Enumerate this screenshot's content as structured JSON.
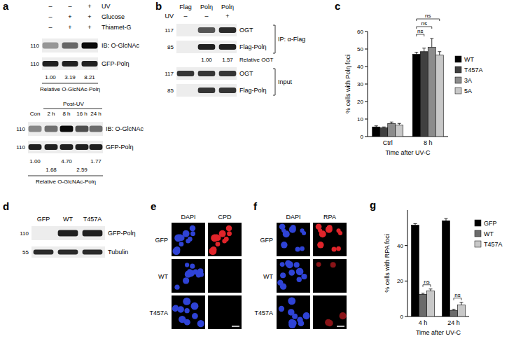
{
  "chart_data": [
    {
      "type": "bar",
      "panel_label": "c",
      "categories": [
        "Ctrl",
        "8 h"
      ],
      "series": [
        {
          "name": "WT",
          "color": "#000000",
          "values": [
            5.5,
            47
          ],
          "errors": [
            0.6,
            1.2
          ]
        },
        {
          "name": "T457A",
          "color": "#404040",
          "values": [
            5,
            48.5
          ],
          "errors": [
            0.5,
            2
          ]
        },
        {
          "name": "3A",
          "color": "#8c8c8c",
          "values": [
            7.5,
            51
          ],
          "errors": [
            0.8,
            5
          ]
        },
        {
          "name": "5A",
          "color": "#c8c8c8",
          "values": [
            6.5,
            46.5
          ],
          "errors": [
            1,
            2
          ]
        }
      ],
      "ylim": [
        0,
        60
      ],
      "yticks": [
        0,
        10,
        20,
        30,
        40,
        50,
        60
      ],
      "y_label": "% cells with Polη foci",
      "x_label": "Time after UV-C",
      "legend": "right",
      "annotations": [
        "ns",
        "ns",
        "ns"
      ]
    },
    {
      "type": "bar",
      "panel_label": "g",
      "categories": [
        "4 h",
        "24 h"
      ],
      "series": [
        {
          "name": "GFP",
          "color": "#000000",
          "values": [
            51.5,
            54
          ],
          "errors": [
            0.8,
            1.2
          ]
        },
        {
          "name": "WT",
          "color": "#6b6b6b",
          "values": [
            12.5,
            3.5
          ],
          "errors": [
            0.6,
            0.6
          ]
        },
        {
          "name": "T457A",
          "color": "#c8c8c8",
          "values": [
            14.5,
            6.5
          ],
          "errors": [
            1,
            1.5
          ]
        }
      ],
      "ylim": [
        0,
        60
      ],
      "yticks": [
        0,
        20,
        40
      ],
      "y_label": "% cells with RPA foci",
      "x_label": "Time after UV-C",
      "legend": "right",
      "annotations": [
        "ns",
        "ns"
      ]
    }
  ],
  "panels": {
    "a": {
      "label": "a",
      "top": {
        "conditions": [
          {
            "name": "UV",
            "signs": [
              "–",
              "–",
              "+"
            ]
          },
          {
            "name": "Glucose",
            "signs": [
              "–",
              "+",
              "+"
            ]
          },
          {
            "name": "Thiamet-G",
            "signs": [
              "–",
              "+",
              "+"
            ]
          }
        ],
        "blots": [
          {
            "mw": "110",
            "name": "IB: O-GlcNAc"
          },
          {
            "mw": "110",
            "name": "GFP-Polη"
          }
        ],
        "quant": [
          "1.00",
          "3.19",
          "8.21"
        ],
        "quant_label": "Relative O-GlcNAc-Polη"
      },
      "bottom": {
        "control": "Con",
        "group": "Post-UV",
        "times": [
          "2 h",
          "8 h",
          "16 h",
          "24 h"
        ],
        "blots": [
          {
            "mw": "110",
            "name": "IB: O-GlcNAc"
          },
          {
            "mw": "110",
            "name": "GFP-Polη"
          }
        ],
        "quant": [
          "1.00",
          "1.68",
          "4.70",
          "2.59",
          "1.77"
        ],
        "quant_label": "Relative O-GlcNAc-Polη"
      }
    },
    "b": {
      "label": "b",
      "lanes": [
        "Flag",
        "Polη",
        "Polη"
      ],
      "condition": {
        "name": "UV",
        "signs": [
          "–",
          "–",
          "+"
        ]
      },
      "ip": {
        "name": "IP: α-Flag",
        "blots": [
          {
            "mw": "117",
            "name": "OGT"
          },
          {
            "mw": "85",
            "name": "Flag-Polη"
          }
        ]
      },
      "quant": [
        "1.00",
        "1.57"
      ],
      "quant_label": "Relative OGT",
      "input": {
        "name": "Input",
        "blots": [
          {
            "mw": "117",
            "name": "OGT"
          },
          {
            "mw": "85",
            "name": "Flag-Polη"
          }
        ]
      }
    },
    "d": {
      "label": "d",
      "lanes": [
        "GFP",
        "WT",
        "T457A"
      ],
      "blots": [
        {
          "mw": "110",
          "name": "GFP-Polη"
        },
        {
          "mw": "55",
          "name": "Tubulin"
        }
      ]
    },
    "e": {
      "label": "e",
      "columns": [
        "DAPI",
        "CPD"
      ],
      "rows": [
        "GFP",
        "WT",
        "T457A"
      ]
    },
    "f": {
      "label": "f",
      "columns": [
        "DAPI",
        "RPA"
      ],
      "rows": [
        "GFP",
        "WT",
        "T457A"
      ]
    }
  }
}
